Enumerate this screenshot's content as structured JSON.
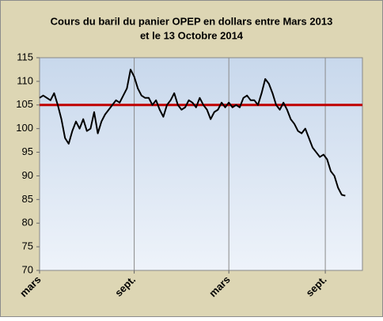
{
  "chart_data": {
    "type": "line",
    "title": "Cours du baril du panier OPEP en dollars entre Mars 2013",
    "subtitle": "et le 13 Octobre 2014",
    "x": [
      0,
      1,
      2,
      3,
      4,
      5,
      6,
      7,
      8,
      9,
      10,
      11,
      12,
      13,
      14,
      15,
      16,
      17,
      18,
      19,
      20,
      21,
      22,
      23,
      24,
      25,
      26,
      27,
      28,
      29,
      30,
      31,
      32,
      33,
      34,
      35,
      36,
      37,
      38,
      39,
      40,
      41,
      42,
      43,
      44,
      45,
      46,
      47,
      48,
      49,
      50,
      51,
      52,
      53,
      54,
      55,
      56,
      57,
      58,
      59,
      60,
      61,
      62,
      63,
      64,
      65,
      66,
      67,
      68,
      69,
      70,
      71,
      72,
      73,
      74,
      75,
      76,
      77,
      78,
      79,
      80,
      81,
      82,
      83,
      84
    ],
    "series": [
      {
        "name": "OPEP",
        "color": "#000000",
        "values": [
          106.5,
          107,
          106.5,
          106,
          107.5,
          105,
          102,
          98,
          96.8,
          99.5,
          101.5,
          100,
          102,
          99.5,
          100,
          103.5,
          99,
          101.5,
          103,
          104,
          105,
          106,
          105.5,
          107,
          108.5,
          112.5,
          111,
          108.5,
          107,
          106.5,
          106.5,
          105,
          106,
          104,
          102.5,
          105,
          106,
          107.5,
          105,
          104,
          104.5,
          106,
          105.5,
          104.5,
          106.5,
          105,
          104,
          102,
          103.5,
          104,
          105.5,
          104.5,
          105.5,
          104.5,
          105,
          104.5,
          106.5,
          107,
          106,
          106,
          105,
          107.5,
          110.5,
          109.5,
          107.5,
          105,
          104,
          105.5,
          104,
          102,
          101,
          99.5,
          99,
          100,
          98,
          96,
          95,
          94,
          94.5,
          93.5,
          91,
          90,
          87.5,
          86,
          85.8
        ]
      }
    ],
    "reference_line": 105,
    "reference_color": "#c00000",
    "xlim": [
      0,
      88.7
    ],
    "xticks": [
      {
        "value": 0,
        "label": "mars"
      },
      {
        "value": 26,
        "label": "sept."
      },
      {
        "value": 52,
        "label": "mars"
      },
      {
        "value": 78.5,
        "label": "sept."
      }
    ],
    "ylim": [
      70,
      115
    ],
    "yticks": [
      70,
      75,
      80,
      85,
      90,
      95,
      100,
      105,
      110,
      115
    ],
    "grid": "x"
  }
}
